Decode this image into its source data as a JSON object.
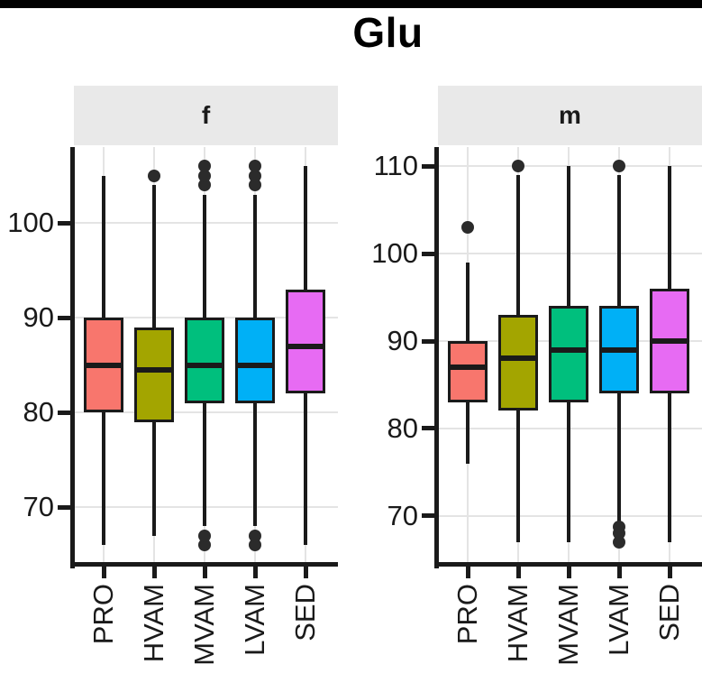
{
  "chart_data": {
    "type": "boxplot",
    "title": "Glu",
    "categories": [
      "PRO",
      "HVAM",
      "MVAM",
      "LVAM",
      "SED"
    ],
    "colors": {
      "PRO": "#F8766D",
      "HVAM": "#A3A500",
      "MVAM": "#00BF7D",
      "LVAM": "#00B0F6",
      "SED": "#E76BF3"
    },
    "grid": true,
    "legend": "none",
    "panels": [
      {
        "facet": "f",
        "ylim": [
          64,
          108
        ],
        "yticks": [
          70,
          80,
          90,
          100
        ],
        "boxes": [
          {
            "category": "PRO",
            "whisker_low": 66,
            "q1": 80,
            "median": 85,
            "q3": 90,
            "whisker_high": 105,
            "outliers_low": [],
            "outliers_high": []
          },
          {
            "category": "HVAM",
            "whisker_low": 67,
            "q1": 79,
            "median": 84.5,
            "q3": 89,
            "whisker_high": 104,
            "outliers_low": [],
            "outliers_high": [
              105
            ]
          },
          {
            "category": "MVAM",
            "whisker_low": 68,
            "q1": 81,
            "median": 85,
            "q3": 90,
            "whisker_high": 103,
            "outliers_low": [
              66,
              67
            ],
            "outliers_high": [
              104,
              105,
              106
            ]
          },
          {
            "category": "LVAM",
            "whisker_low": 68,
            "q1": 81,
            "median": 85,
            "q3": 90,
            "whisker_high": 103,
            "outliers_low": [
              66,
              67
            ],
            "outliers_high": [
              104,
              105,
              106
            ]
          },
          {
            "category": "SED",
            "whisker_low": 66,
            "q1": 82,
            "median": 87,
            "q3": 93,
            "whisker_high": 106,
            "outliers_low": [],
            "outliers_high": []
          }
        ]
      },
      {
        "facet": "m",
        "ylim": [
          64.5,
          112.2
        ],
        "yticks": [
          70,
          80,
          90,
          100,
          110
        ],
        "boxes": [
          {
            "category": "PRO",
            "whisker_low": 76,
            "q1": 83,
            "median": 87,
            "q3": 90,
            "whisker_high": 99,
            "outliers_low": [],
            "outliers_high": [
              103
            ]
          },
          {
            "category": "HVAM",
            "whisker_low": 67,
            "q1": 82,
            "median": 88,
            "q3": 93,
            "whisker_high": 109,
            "outliers_low": [],
            "outliers_high": [
              110
            ]
          },
          {
            "category": "MVAM",
            "whisker_low": 67,
            "q1": 83,
            "median": 89,
            "q3": 94,
            "whisker_high": 110,
            "outliers_low": [],
            "outliers_high": []
          },
          {
            "category": "LVAM",
            "whisker_low": 69,
            "q1": 84,
            "median": 89,
            "q3": 94,
            "whisker_high": 109,
            "outliers_low": [
              67,
              68,
              68.7
            ],
            "outliers_high": [
              110
            ]
          },
          {
            "category": "SED",
            "whisker_low": 67,
            "q1": 84,
            "median": 90,
            "q3": 96,
            "whisker_high": 110,
            "outliers_low": [],
            "outliers_high": []
          }
        ]
      }
    ]
  }
}
